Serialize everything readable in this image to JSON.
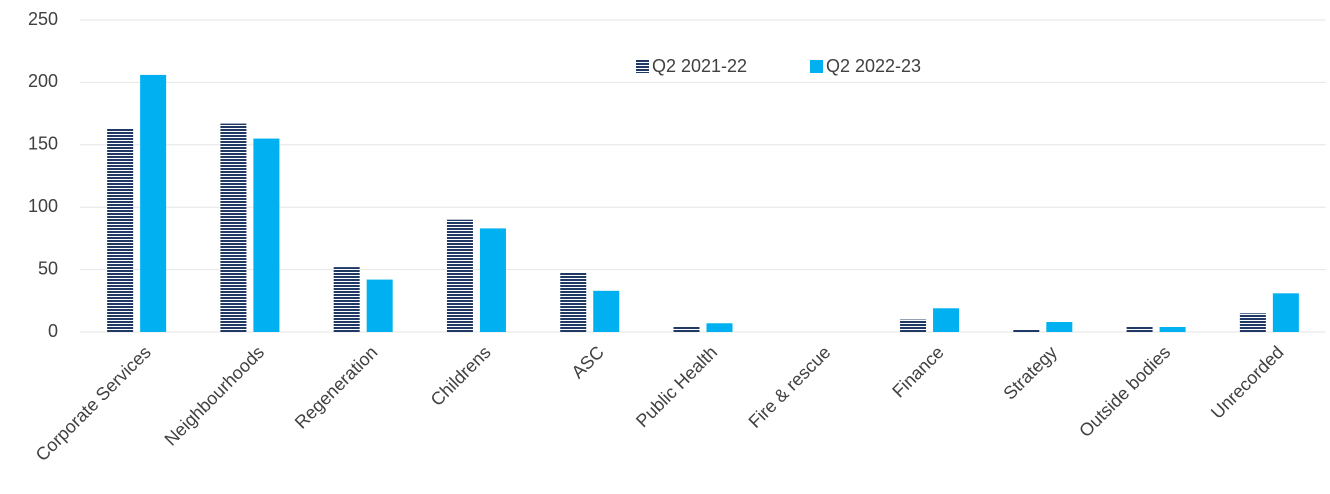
{
  "chart_data": {
    "type": "bar",
    "categories": [
      "Corporate Services",
      "Neighbourhoods",
      "Regeneration",
      "Childrens",
      "ASC",
      "Public Health",
      "Fire & rescue",
      "Finance",
      "Strategy",
      "Outside bodies",
      "Unrecorded"
    ],
    "series": [
      {
        "name": "Q2 2021-22",
        "color": "#203864",
        "pattern": "horizontal-lines",
        "values": [
          163,
          167,
          52,
          90,
          48,
          4,
          0,
          10,
          2,
          4,
          15
        ]
      },
      {
        "name": "Q2 2022-23",
        "color": "#00b0f0",
        "values": [
          206,
          155,
          42,
          83,
          33,
          7,
          0,
          19,
          8,
          4,
          31
        ]
      }
    ],
    "ylim": [
      0,
      250
    ],
    "yticks": [
      0,
      50,
      100,
      150,
      200,
      250
    ],
    "grid": true,
    "legend": "top"
  }
}
